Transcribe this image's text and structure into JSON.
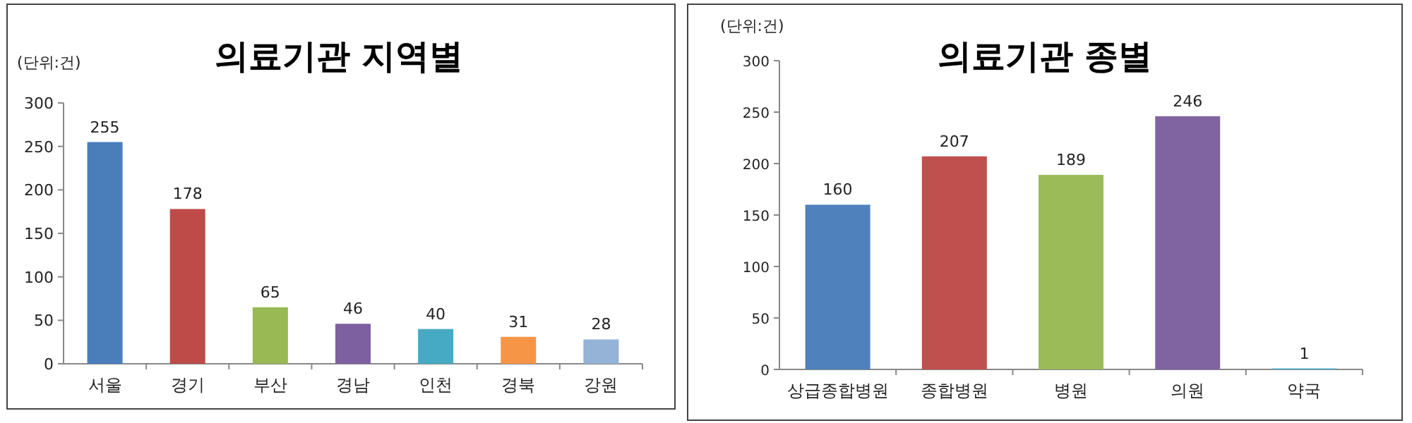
{
  "chart_data": [
    {
      "type": "bar",
      "title": "의료기관 지역별",
      "ylabel": "(단위:건)",
      "categories": [
        "서울",
        "경기",
        "부산",
        "경남",
        "인천",
        "경북",
        "강원"
      ],
      "values": [
        255,
        178,
        65,
        46,
        40,
        31,
        28
      ],
      "colors": [
        "#4a7ebb",
        "#be4b48",
        "#98b954",
        "#7d60a0",
        "#46aac5",
        "#f69546",
        "#95b3d7"
      ],
      "ylim": [
        0,
        300
      ],
      "yticks": [
        0,
        50,
        100,
        150,
        200,
        250,
        300
      ],
      "data_labels": true
    },
    {
      "type": "bar",
      "title": "의료기관 종별",
      "ylabel": "(단위:건)",
      "categories": [
        "상급종합병원",
        "종합병원",
        "병원",
        "의원",
        "약국"
      ],
      "values": [
        160,
        207,
        189,
        246,
        1
      ],
      "colors": [
        "#4f81bd",
        "#c0504d",
        "#9bbb59",
        "#8064a2",
        "#4bacc6"
      ],
      "ylim": [
        0,
        300
      ],
      "yticks": [
        0,
        50,
        100,
        150,
        200,
        250,
        300
      ],
      "data_labels": true
    }
  ]
}
